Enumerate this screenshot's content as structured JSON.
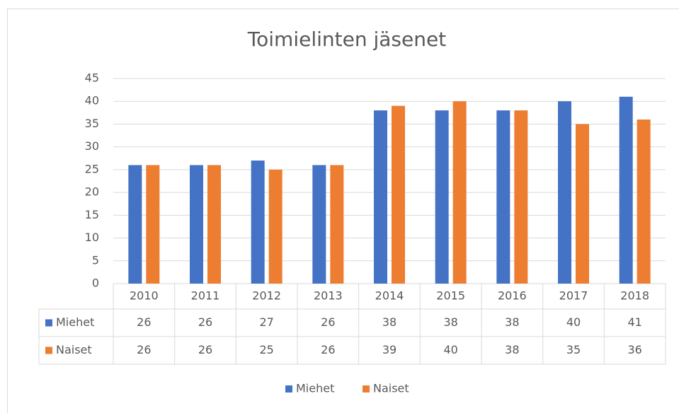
{
  "chart_data": {
    "type": "bar",
    "title": "Toimielinten jäsenet",
    "categories": [
      "2010",
      "2011",
      "2012",
      "2013",
      "2014",
      "2015",
      "2016",
      "2017",
      "2018"
    ],
    "series": [
      {
        "name": "Miehet",
        "color": "#4472c4",
        "values": [
          26,
          26,
          27,
          26,
          38,
          38,
          38,
          40,
          41
        ]
      },
      {
        "name": "Naiset",
        "color": "#ed7d31",
        "values": [
          26,
          26,
          25,
          26,
          39,
          40,
          38,
          35,
          36
        ]
      }
    ],
    "ylim": [
      0,
      45
    ],
    "yticks": [
      0,
      5,
      10,
      15,
      20,
      25,
      30,
      35,
      40,
      45
    ],
    "grid": true,
    "legend": "bottom",
    "data_table": true
  }
}
